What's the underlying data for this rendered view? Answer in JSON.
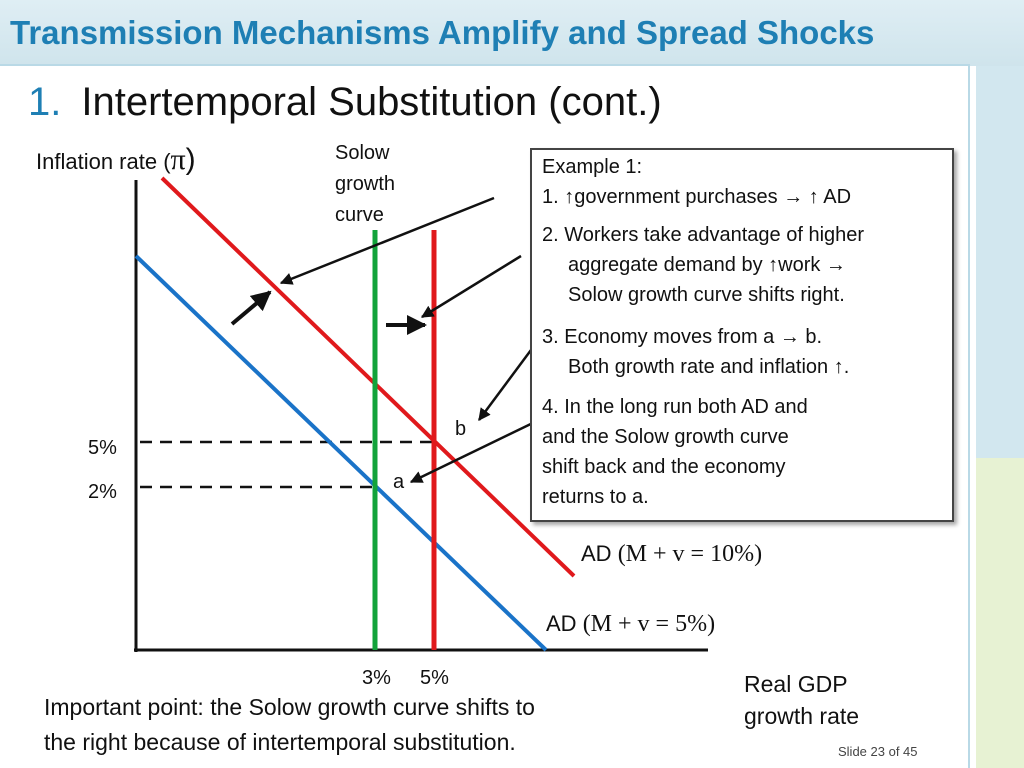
{
  "header": {
    "title": "Transmission Mechanisms Amplify and Spread Shocks"
  },
  "subtitle": {
    "number": "1.",
    "text": "Intertemporal Substitution (cont.)"
  },
  "axes": {
    "y_label": "Inflation rate (",
    "y_symbol": "π",
    "y_close": ")",
    "x_label_line1": "Real GDP",
    "x_label_line2": "growth rate"
  },
  "solow_label": {
    "line1": "Solow",
    "line2": "growth",
    "line3": "curve"
  },
  "ticks": {
    "y_high": "5%",
    "y_low": "2%",
    "x_left": "3%",
    "x_right": "5%"
  },
  "points": {
    "a": "a",
    "b": "b"
  },
  "ad_labels": {
    "ad_high_prefix": "AD",
    "ad_high_formula": "(M + v = 10%)",
    "ad_low_prefix": "AD",
    "ad_low_formula": "(M + v = 5%)"
  },
  "callout": {
    "example_title": "Example 1:",
    "step1": "1. ↑government purchases → ↑ AD",
    "step2_line1": "2. Workers take advantage of higher",
    "step2_line2": "aggregate demand by ↑work →",
    "step2_line3": "Solow growth curve shifts right.",
    "step3_line1": "3. Economy moves from a → b.",
    "step3_line2": "Both growth rate and inflation ↑.",
    "step4_line1": "4. In the long run both AD and",
    "step4_line2": "and the Solow growth curve",
    "step4_line3": "shift back and the economy",
    "step4_line4": "returns to a."
  },
  "important_note": {
    "line1": "Important point: the Solow growth curve shifts to",
    "line2": "the right because of intertemporal substitution."
  },
  "footer": {
    "slide_number": "Slide 23 of 45"
  },
  "colors": {
    "title_blue": "#1e7fb4",
    "ad_red": "#e0191c",
    "ad_blue": "#1a73c8",
    "solow_green": "#12a33a",
    "axis_black": "#111111"
  }
}
